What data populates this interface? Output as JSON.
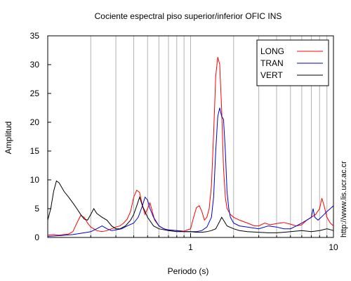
{
  "side_text": "http://www.lis.ucr.ac.cr",
  "chart_data": {
    "type": "line",
    "title": "Cociente espectral piso superior/inferior  OFIC INS",
    "xlabel": "Periodo (s)",
    "ylabel": "Amplitud",
    "xscale": "log",
    "xlim": [
      0.1,
      10
    ],
    "ylim": [
      0,
      35
    ],
    "grid": "vertical-log",
    "legend_position": "top-right",
    "xticks": [
      1,
      10
    ],
    "xtick_labels": [
      "1",
      "10"
    ],
    "yticks": [
      0,
      5,
      10,
      15,
      20,
      25,
      30,
      35
    ],
    "ytick_labels": [
      "0",
      "5",
      "10",
      "15",
      "20",
      "25",
      "30",
      "35"
    ],
    "series": [
      {
        "name": "LONG",
        "color": "#ff0000",
        "points": [
          [
            0.1,
            0.4
          ],
          [
            0.11,
            0.5
          ],
          [
            0.12,
            0.4
          ],
          [
            0.13,
            0.5
          ],
          [
            0.14,
            0.6
          ],
          [
            0.15,
            1.0
          ],
          [
            0.16,
            2.5
          ],
          [
            0.17,
            3.8
          ],
          [
            0.18,
            3.5
          ],
          [
            0.19,
            2.5
          ],
          [
            0.2,
            1.8
          ],
          [
            0.22,
            1.2
          ],
          [
            0.24,
            1.0
          ],
          [
            0.26,
            1.2
          ],
          [
            0.28,
            1.5
          ],
          [
            0.3,
            1.8
          ],
          [
            0.32,
            2.0
          ],
          [
            0.34,
            2.5
          ],
          [
            0.36,
            3.2
          ],
          [
            0.38,
            4.5
          ],
          [
            0.4,
            7.0
          ],
          [
            0.42,
            8.2
          ],
          [
            0.44,
            7.8
          ],
          [
            0.46,
            5.5
          ],
          [
            0.48,
            4.0
          ],
          [
            0.5,
            5.0
          ],
          [
            0.52,
            6.0
          ],
          [
            0.54,
            4.5
          ],
          [
            0.56,
            3.0
          ],
          [
            0.6,
            2.0
          ],
          [
            0.65,
            1.5
          ],
          [
            0.7,
            1.3
          ],
          [
            0.8,
            1.2
          ],
          [
            0.9,
            1.1
          ],
          [
            1.0,
            1.5
          ],
          [
            1.05,
            3.5
          ],
          [
            1.1,
            5.2
          ],
          [
            1.15,
            5.5
          ],
          [
            1.2,
            4.5
          ],
          [
            1.25,
            3.0
          ],
          [
            1.3,
            3.5
          ],
          [
            1.35,
            5.0
          ],
          [
            1.4,
            9.0
          ],
          [
            1.45,
            18.0
          ],
          [
            1.5,
            28.0
          ],
          [
            1.55,
            31.3
          ],
          [
            1.6,
            30.0
          ],
          [
            1.65,
            22.0
          ],
          [
            1.7,
            12.0
          ],
          [
            1.75,
            7.0
          ],
          [
            1.8,
            5.0
          ],
          [
            1.9,
            4.0
          ],
          [
            2.0,
            3.5
          ],
          [
            2.2,
            3.0
          ],
          [
            2.5,
            2.5
          ],
          [
            2.8,
            2.0
          ],
          [
            3.0,
            2.0
          ],
          [
            3.3,
            2.5
          ],
          [
            3.6,
            2.2
          ],
          [
            4.0,
            2.4
          ],
          [
            4.5,
            2.6
          ],
          [
            5.0,
            2.3
          ],
          [
            5.5,
            2.0
          ],
          [
            6.0,
            2.2
          ],
          [
            6.5,
            3.0
          ],
          [
            7.0,
            3.5
          ],
          [
            7.5,
            4.0
          ],
          [
            8.0,
            5.0
          ],
          [
            8.3,
            6.8
          ],
          [
            8.6,
            5.5
          ],
          [
            9.0,
            3.5
          ],
          [
            9.5,
            2.5
          ],
          [
            10.0,
            2.0
          ]
        ]
      },
      {
        "name": "TRAN",
        "color": "#0000cc",
        "points": [
          [
            0.1,
            0.2
          ],
          [
            0.12,
            0.3
          ],
          [
            0.15,
            0.5
          ],
          [
            0.18,
            0.8
          ],
          [
            0.2,
            1.0
          ],
          [
            0.22,
            1.5
          ],
          [
            0.24,
            2.0
          ],
          [
            0.26,
            1.5
          ],
          [
            0.28,
            1.2
          ],
          [
            0.3,
            1.3
          ],
          [
            0.33,
            1.5
          ],
          [
            0.36,
            2.0
          ],
          [
            0.4,
            2.5
          ],
          [
            0.43,
            3.5
          ],
          [
            0.46,
            5.5
          ],
          [
            0.48,
            7.0
          ],
          [
            0.5,
            6.5
          ],
          [
            0.52,
            5.0
          ],
          [
            0.55,
            3.5
          ],
          [
            0.6,
            2.0
          ],
          [
            0.65,
            1.5
          ],
          [
            0.7,
            1.3
          ],
          [
            0.8,
            1.2
          ],
          [
            0.9,
            1.0
          ],
          [
            1.0,
            1.0
          ],
          [
            1.1,
            1.0
          ],
          [
            1.2,
            1.2
          ],
          [
            1.3,
            1.8
          ],
          [
            1.4,
            3.5
          ],
          [
            1.45,
            7.0
          ],
          [
            1.5,
            15.0
          ],
          [
            1.55,
            21.0
          ],
          [
            1.6,
            22.5
          ],
          [
            1.65,
            21.0
          ],
          [
            1.7,
            20.5
          ],
          [
            1.75,
            15.0
          ],
          [
            1.8,
            8.0
          ],
          [
            1.85,
            5.0
          ],
          [
            1.9,
            3.5
          ],
          [
            2.0,
            2.5
          ],
          [
            2.2,
            2.0
          ],
          [
            2.5,
            1.8
          ],
          [
            3.0,
            1.5
          ],
          [
            3.5,
            2.0
          ],
          [
            4.0,
            1.8
          ],
          [
            4.5,
            1.5
          ],
          [
            5.0,
            1.5
          ],
          [
            5.5,
            2.0
          ],
          [
            6.0,
            2.5
          ],
          [
            6.5,
            3.0
          ],
          [
            7.0,
            3.5
          ],
          [
            7.2,
            5.0
          ],
          [
            7.4,
            3.5
          ],
          [
            7.8,
            3.0
          ],
          [
            8.2,
            3.5
          ],
          [
            8.6,
            4.0
          ],
          [
            9.0,
            4.5
          ],
          [
            9.5,
            5.0
          ],
          [
            10.0,
            5.5
          ]
        ]
      },
      {
        "name": "VERT",
        "color": "#000000",
        "points": [
          [
            0.1,
            3.0
          ],
          [
            0.105,
            5.0
          ],
          [
            0.11,
            8.0
          ],
          [
            0.115,
            9.8
          ],
          [
            0.12,
            9.5
          ],
          [
            0.13,
            8.0
          ],
          [
            0.14,
            7.0
          ],
          [
            0.15,
            6.0
          ],
          [
            0.16,
            5.0
          ],
          [
            0.17,
            4.0
          ],
          [
            0.18,
            3.2
          ],
          [
            0.19,
            3.0
          ],
          [
            0.2,
            4.0
          ],
          [
            0.21,
            5.0
          ],
          [
            0.22,
            4.2
          ],
          [
            0.24,
            3.5
          ],
          [
            0.26,
            3.0
          ],
          [
            0.28,
            2.0
          ],
          [
            0.3,
            1.5
          ],
          [
            0.32,
            1.5
          ],
          [
            0.35,
            2.0
          ],
          [
            0.38,
            3.0
          ],
          [
            0.4,
            4.0
          ],
          [
            0.42,
            5.5
          ],
          [
            0.44,
            7.0
          ],
          [
            0.46,
            5.5
          ],
          [
            0.48,
            4.5
          ],
          [
            0.5,
            3.5
          ],
          [
            0.55,
            2.0
          ],
          [
            0.6,
            1.5
          ],
          [
            0.7,
            1.2
          ],
          [
            0.8,
            1.0
          ],
          [
            0.9,
            1.0
          ],
          [
            1.0,
            1.0
          ],
          [
            1.1,
            0.9
          ],
          [
            1.2,
            0.9
          ],
          [
            1.3,
            1.0
          ],
          [
            1.4,
            1.2
          ],
          [
            1.5,
            1.5
          ],
          [
            1.6,
            2.8
          ],
          [
            1.65,
            3.5
          ],
          [
            1.7,
            3.0
          ],
          [
            1.8,
            2.0
          ],
          [
            2.0,
            1.5
          ],
          [
            2.2,
            1.2
          ],
          [
            2.5,
            1.0
          ],
          [
            3.0,
            0.9
          ],
          [
            3.5,
            0.8
          ],
          [
            4.0,
            0.8
          ],
          [
            4.5,
            0.9
          ],
          [
            5.0,
            1.0
          ],
          [
            6.0,
            1.2
          ],
          [
            7.0,
            1.0
          ],
          [
            8.0,
            1.2
          ],
          [
            9.0,
            1.5
          ],
          [
            10.0,
            1.2
          ]
        ]
      }
    ]
  }
}
